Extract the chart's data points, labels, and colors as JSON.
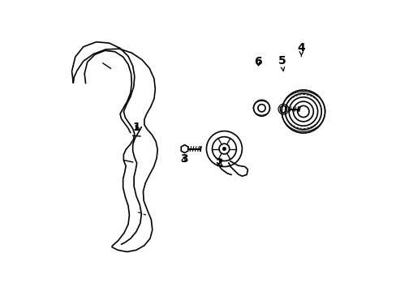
{
  "background_color": "#ffffff",
  "line_color": "#000000",
  "line_width": 1.2
}
